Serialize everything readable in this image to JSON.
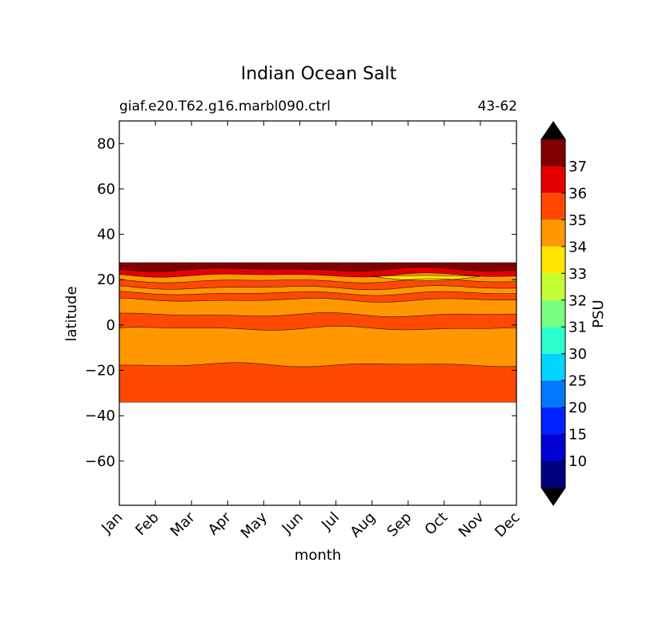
{
  "chart_data": {
    "type": "heatmap",
    "title": "Indian Ocean Salt",
    "subtitle_left": "giaf.e20.T62.g16.marbl090.ctrl",
    "subtitle_right": "43-62",
    "xlabel": "month",
    "ylabel": "latitude",
    "x": [
      "Jan",
      "Feb",
      "Mar",
      "Apr",
      "May",
      "Jun",
      "Jul",
      "Aug",
      "Sep",
      "Oct",
      "Nov",
      "Dec"
    ],
    "xlim": [
      0,
      11
    ],
    "ylim": [
      -79.5,
      90
    ],
    "yticks": [
      80,
      60,
      40,
      20,
      0,
      -20,
      -40,
      -60
    ],
    "colorbar": {
      "label": "PSU",
      "levels": [
        10,
        15,
        20,
        25,
        30,
        31,
        32,
        33,
        34,
        35,
        36,
        37
      ],
      "colors": [
        "#00007f",
        "#0000d5",
        "#0022ff",
        "#0078ff",
        "#00d4ff",
        "#2bffcc",
        "#78ff7f",
        "#c4ff33",
        "#ffe500",
        "#ff9800",
        "#ff4800",
        "#e50000",
        "#7f0000"
      ],
      "extend": "both",
      "extend_colors": [
        "#000000",
        "#000000"
      ]
    },
    "bands": [
      {
        "from_lat": -34,
        "to_lat": -17.5,
        "value": 35.3,
        "color": "#ff4800"
      },
      {
        "from_lat": -17.5,
        "to_lat": -1.5,
        "value": 34.6,
        "color": "#ff9800"
      },
      {
        "from_lat": -1.5,
        "to_lat": 4.5,
        "value": 35.3,
        "color": "#ff4800"
      },
      {
        "from_lat": 4.5,
        "to_lat": 11,
        "value": 34.7,
        "color": "#ff9800"
      },
      {
        "from_lat": 11,
        "to_lat": 14,
        "value": 35.2,
        "color": "#ff4800"
      },
      {
        "from_lat": 14,
        "to_lat": 16.5,
        "value": 34.8,
        "color": "#ff9800"
      },
      {
        "from_lat": 16.5,
        "to_lat": 19.5,
        "value": 35.1,
        "color": "#ff4800"
      },
      {
        "from_lat": 19.5,
        "to_lat": 22,
        "value": 34.5,
        "color": "#ff9800"
      },
      {
        "from_lat": 22,
        "to_lat": 24.5,
        "value": 36.4,
        "color": "#e50000"
      },
      {
        "from_lat": 24.5,
        "to_lat": 27.5,
        "value": 37.3,
        "color": "#7f0000"
      }
    ],
    "low_salinity_patch": {
      "months": [
        "Aug",
        "Nov"
      ],
      "lat_range": [
        18.5,
        21.5
      ],
      "value": 33.8,
      "color": "#ffe500"
    },
    "missing_data": "no data south of -34 and north of 27.5",
    "grid": false
  }
}
